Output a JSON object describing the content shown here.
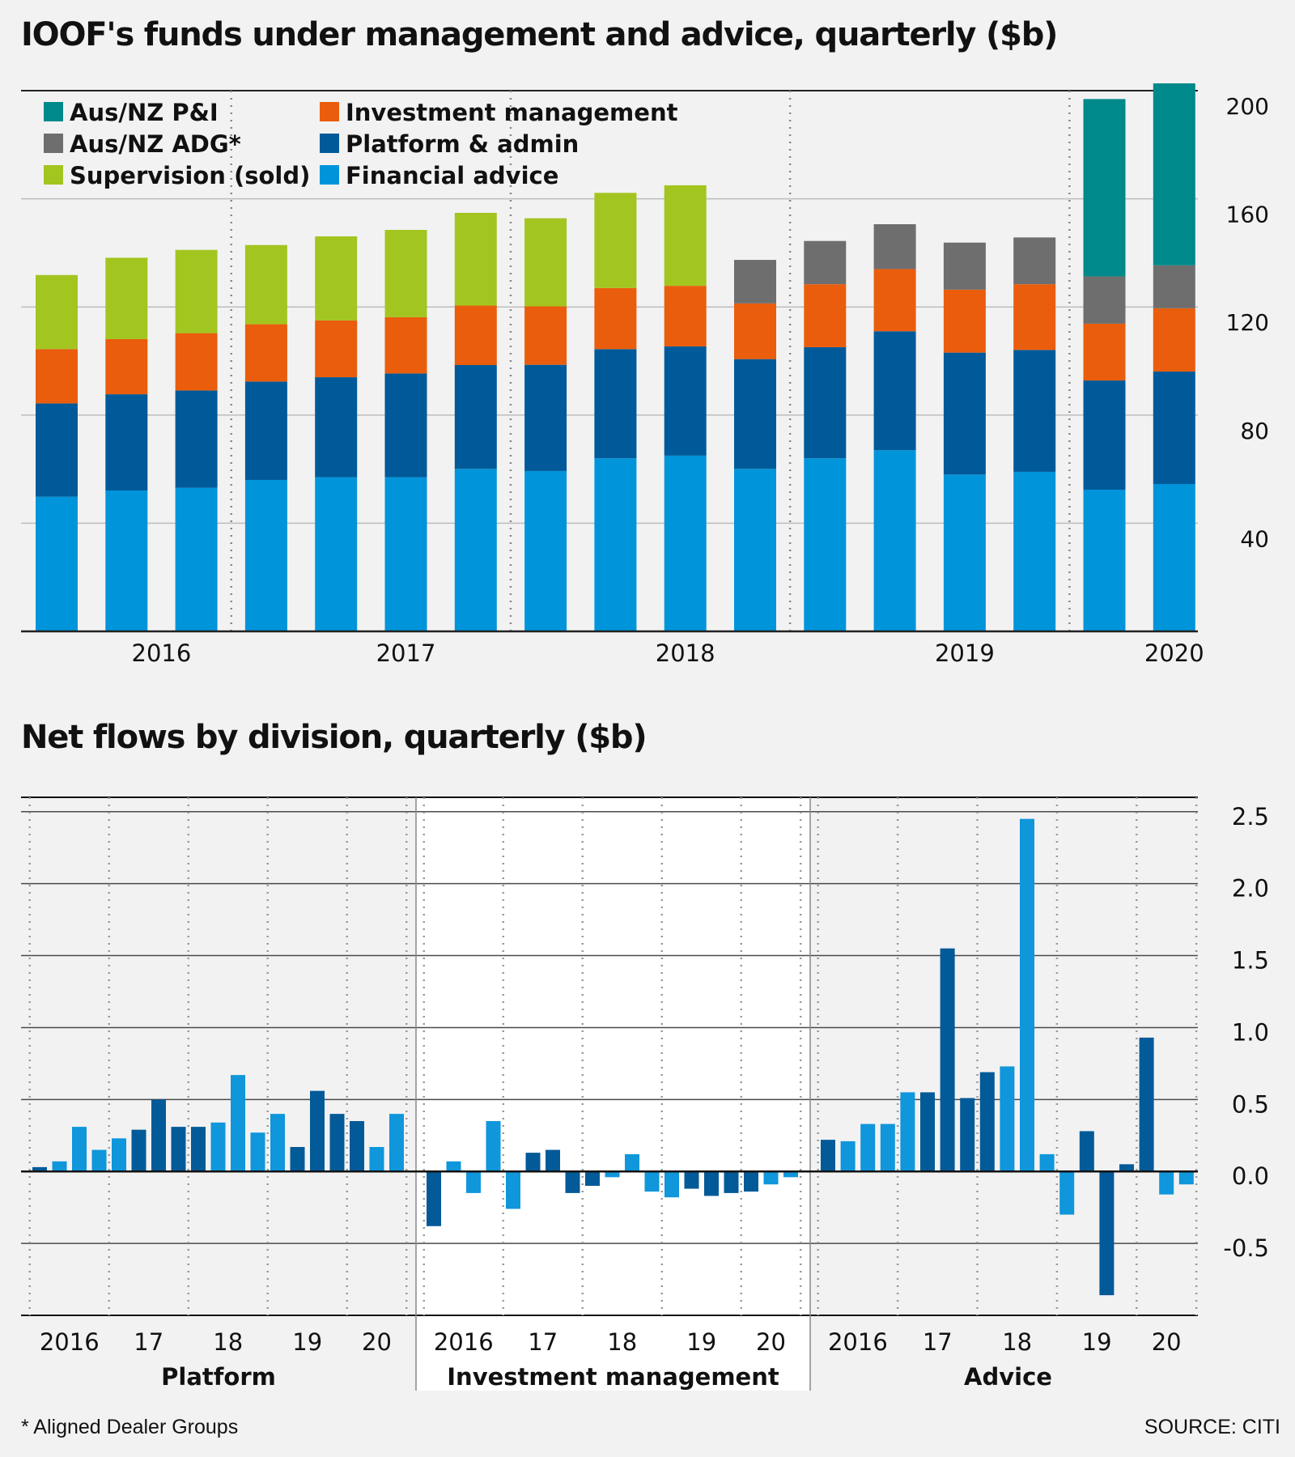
{
  "colors": {
    "ausnz_pi": "#00898a",
    "ausnz_adg": "#6e6e6e",
    "supervision": "#a3c520",
    "investment_management": "#ea5d0c",
    "platform_admin": "#005a99",
    "financial_advice": "#0095da",
    "flow_dark": "#035a98",
    "flow_light": "#0f96db",
    "background": "#f2f2f2",
    "panel_white": "#ffffff"
  },
  "footnote": "* Aligned Dealer Groups",
  "source": "SOURCE: CITI",
  "chart_data": [
    {
      "type": "bar",
      "stacked": true,
      "title": "IOOF's funds under management and advice, quarterly ($b)",
      "ylim": [
        0,
        200
      ],
      "yticks": [
        40,
        80,
        120,
        160,
        200
      ],
      "y_axis_side": "right",
      "grid": "horizontal",
      "legend_position": "top-left",
      "year_labels": [
        {
          "label": "2016",
          "center_index": 1.5
        },
        {
          "label": "2017",
          "center_index": 5
        },
        {
          "label": "2018",
          "center_index": 9
        },
        {
          "label": "2019",
          "center_index": 13
        },
        {
          "label": "2020",
          "center_index": 16
        }
      ],
      "year_dividers_after_index": [
        2.5,
        6.5,
        10.5,
        14.5
      ],
      "legend": [
        {
          "name": "Aus/NZ P&I",
          "color_key": "ausnz_pi"
        },
        {
          "name": "Investment management",
          "color_key": "investment_management"
        },
        {
          "name": "Aus/NZ ADG*",
          "color_key": "ausnz_adg"
        },
        {
          "name": "Platform & admin",
          "color_key": "platform_admin"
        },
        {
          "name": "Supervision (sold)",
          "color_key": "supervision"
        },
        {
          "name": "Financial advice",
          "color_key": "financial_advice"
        }
      ],
      "series": [
        {
          "name": "Financial advice",
          "color_key": "financial_advice",
          "values": [
            49.8,
            52.1,
            53.1,
            56.0,
            57.0,
            57.0,
            60.1,
            59.3,
            64.0,
            65.0,
            60.1,
            64.0,
            67.0,
            58.0,
            59.0,
            52.4,
            54.5
          ]
        },
        {
          "name": "Platform & admin",
          "color_key": "platform_admin",
          "values": [
            34.5,
            35.6,
            36.0,
            36.4,
            37.0,
            38.4,
            38.4,
            39.3,
            40.4,
            40.4,
            40.6,
            41.1,
            44.0,
            45.1,
            45.1,
            40.4,
            41.6
          ]
        },
        {
          "name": "Investment management",
          "color_key": "investment_management",
          "values": [
            20.1,
            20.4,
            21.2,
            21.2,
            21.0,
            20.8,
            22.0,
            21.6,
            22.6,
            22.4,
            20.6,
            23.3,
            23.0,
            23.3,
            24.3,
            21.0,
            23.4
          ]
        },
        {
          "name": "Supervision (sold)",
          "color_key": "supervision",
          "values": [
            27.4,
            30.1,
            30.8,
            29.3,
            31.1,
            32.3,
            34.3,
            32.6,
            35.2,
            37.2,
            0,
            0,
            0,
            0,
            0,
            0,
            0
          ]
        },
        {
          "name": "Aus/NZ ADG*",
          "color_key": "ausnz_adg",
          "values": [
            0,
            0,
            0,
            0,
            0,
            0,
            0,
            0,
            0,
            0,
            16.1,
            16.0,
            16.6,
            17.4,
            17.3,
            17.5,
            15.9
          ]
        },
        {
          "name": "Aus/NZ P&I",
          "color_key": "ausnz_pi",
          "values": [
            0,
            0,
            0,
            0,
            0,
            0,
            0,
            0,
            0,
            0,
            0,
            0,
            0,
            0,
            0,
            65.6,
            67.3
          ]
        }
      ]
    },
    {
      "type": "bar",
      "title": "Net flows by division, quarterly ($b)",
      "ylim": [
        -1.0,
        2.6
      ],
      "yticks": [
        "2.5",
        "2.0",
        "1.5",
        "1.0",
        "0.5",
        "0.0",
        "-0.5"
      ],
      "y_axis_side": "right",
      "grid": "horizontal",
      "highlighted_panel": "Investment management",
      "panels": [
        {
          "name": "Platform",
          "x_labels": [
            "2016",
            "17",
            "18",
            "19",
            "20"
          ],
          "values": [
            0.03,
            0.07,
            0.31,
            0.15,
            0.23,
            0.29,
            0.5,
            0.31,
            0.31,
            0.34,
            0.67,
            0.27,
            0.4,
            0.17,
            0.56,
            0.4,
            0.35,
            0.17,
            0.4
          ],
          "shade": [
            "dark",
            "light",
            "light",
            "light",
            "light",
            "dark",
            "dark",
            "dark",
            "dark",
            "light",
            "light",
            "light",
            "light",
            "dark",
            "dark",
            "dark",
            "dark",
            "light",
            "light"
          ]
        },
        {
          "name": "Investment management",
          "x_labels": [
            "2016",
            "17",
            "18",
            "19",
            "20"
          ],
          "values": [
            -0.38,
            0.07,
            -0.15,
            0.35,
            -0.26,
            0.13,
            0.15,
            -0.15,
            -0.1,
            -0.04,
            0.12,
            -0.14,
            -0.18,
            -0.12,
            -0.17,
            -0.15,
            -0.14,
            -0.09,
            -0.04
          ],
          "shade": [
            "dark",
            "light",
            "light",
            "light",
            "light",
            "dark",
            "dark",
            "dark",
            "dark",
            "light",
            "light",
            "light",
            "light",
            "dark",
            "dark",
            "dark",
            "dark",
            "light",
            "light"
          ]
        },
        {
          "name": "Advice",
          "x_labels": [
            "2016",
            "17",
            "18",
            "19",
            "20"
          ],
          "values": [
            0.22,
            0.21,
            0.33,
            0.33,
            0.55,
            0.55,
            1.55,
            0.51,
            0.69,
            0.73,
            2.45,
            0.12,
            -0.3,
            0.28,
            -0.86,
            0.05,
            0.93,
            -0.16,
            -0.09
          ],
          "shade": [
            "dark",
            "light",
            "light",
            "light",
            "light",
            "dark",
            "dark",
            "dark",
            "dark",
            "light",
            "light",
            "light",
            "light",
            "dark",
            "dark",
            "dark",
            "dark",
            "light",
            "light"
          ]
        }
      ]
    }
  ]
}
